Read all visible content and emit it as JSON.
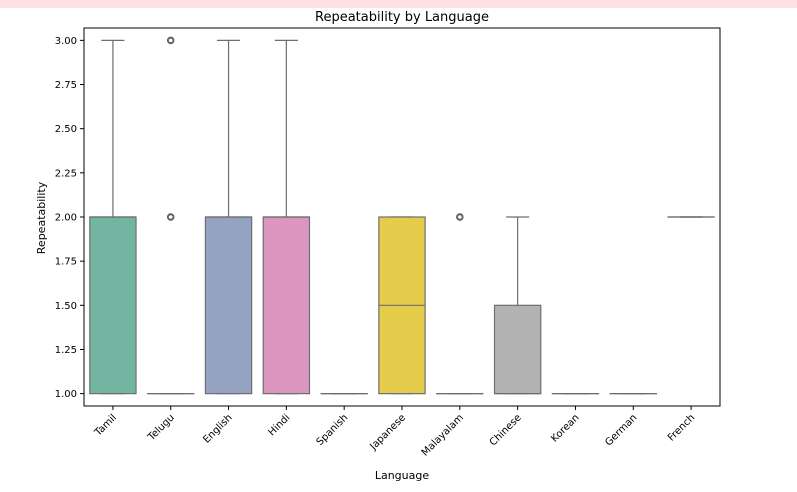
{
  "chart_data": {
    "type": "box",
    "title": "Repeatability by Language",
    "xlabel": "Language",
    "ylabel": "Repeatability",
    "ylim": [
      0.93,
      3.07
    ],
    "y_ticks": [
      "1.00",
      "1.25",
      "1.50",
      "1.75",
      "2.00",
      "2.25",
      "2.50",
      "2.75",
      "3.00"
    ],
    "grid": false,
    "categories": [
      "Tamil",
      "Telugu",
      "English",
      "Hindi",
      "Spanish",
      "Japanese",
      "Malayalam",
      "Chinese",
      "Korean",
      "German",
      "French"
    ],
    "boxes": [
      {
        "category": "Tamil",
        "whisker_low": 1.0,
        "q1": 1.0,
        "median": 2.0,
        "q3": 2.0,
        "whisker_high": 3.0,
        "outliers": [],
        "color": "#72b6a1"
      },
      {
        "category": "Telugu",
        "whisker_low": 1.0,
        "q1": 1.0,
        "median": 1.0,
        "q3": 1.0,
        "whisker_high": 1.0,
        "outliers": [
          2.0,
          3.0
        ],
        "color": "#e99675"
      },
      {
        "category": "English",
        "whisker_low": 1.0,
        "q1": 1.0,
        "median": 2.0,
        "q3": 2.0,
        "whisker_high": 3.0,
        "outliers": [],
        "color": "#95a3c3"
      },
      {
        "category": "Hindi",
        "whisker_low": 1.0,
        "q1": 1.0,
        "median": 2.0,
        "q3": 2.0,
        "whisker_high": 3.0,
        "outliers": [],
        "color": "#db96c0"
      },
      {
        "category": "Spanish",
        "whisker_low": 1.0,
        "q1": 1.0,
        "median": 1.0,
        "q3": 1.0,
        "whisker_high": 1.0,
        "outliers": [],
        "color": "#b0d667"
      },
      {
        "category": "Japanese",
        "whisker_low": 1.0,
        "q1": 1.0,
        "median": 1.5,
        "q3": 2.0,
        "whisker_high": 2.0,
        "outliers": [],
        "color": "#e5cc4b"
      },
      {
        "category": "Malayalam",
        "whisker_low": 1.0,
        "q1": 1.0,
        "median": 1.0,
        "q3": 1.0,
        "whisker_high": 1.0,
        "outliers": [
          2.0
        ],
        "color": "#d7c09e"
      },
      {
        "category": "Chinese",
        "whisker_low": 1.0,
        "q1": 1.0,
        "median": 1.0,
        "q3": 1.5,
        "whisker_high": 2.0,
        "outliers": [],
        "color": "#b3b3b3"
      },
      {
        "category": "Korean",
        "whisker_low": 1.0,
        "q1": 1.0,
        "median": 1.0,
        "q3": 1.0,
        "whisker_high": 1.0,
        "outliers": [],
        "color": "#72b6a1"
      },
      {
        "category": "German",
        "whisker_low": 1.0,
        "q1": 1.0,
        "median": 1.0,
        "q3": 1.0,
        "whisker_high": 1.0,
        "outliers": [],
        "color": "#e99675"
      },
      {
        "category": "French",
        "whisker_low": 2.0,
        "q1": 2.0,
        "median": 2.0,
        "q3": 2.0,
        "whisker_high": 2.0,
        "outliers": [],
        "color": "#95a3c3"
      }
    ]
  }
}
